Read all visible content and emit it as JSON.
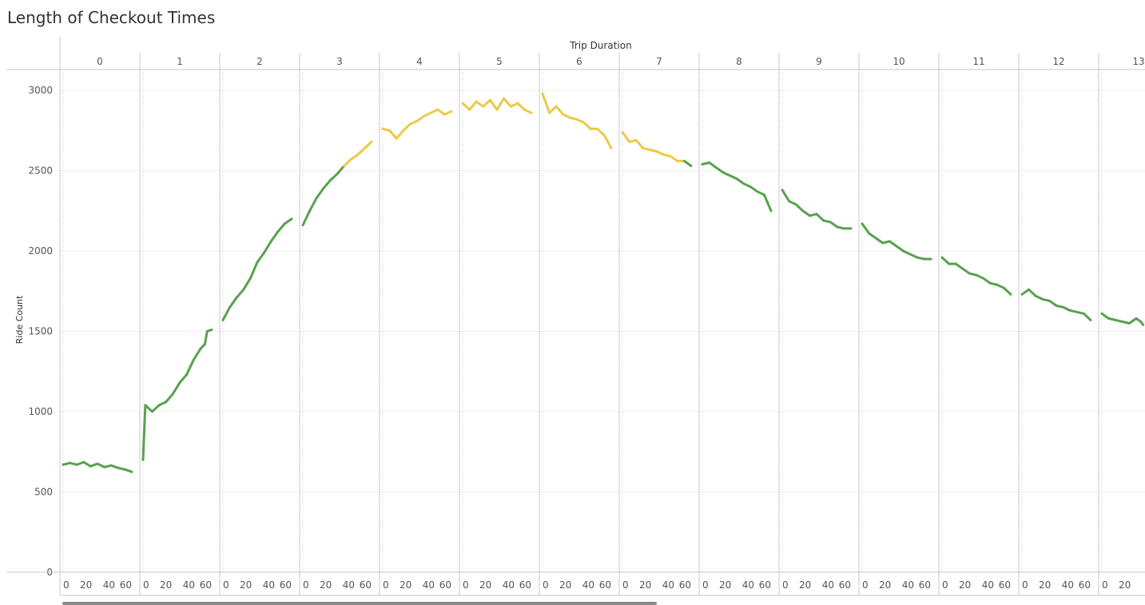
{
  "title": "Length of Checkout Times",
  "chart_data": {
    "type": "line",
    "title": "Length of Checkout Times",
    "panel_header": "Trip Duration",
    "ylabel": "Ride Count",
    "ylim": [
      0,
      3100
    ],
    "yticks": [
      0,
      500,
      1000,
      1500,
      2000,
      2500,
      3000
    ],
    "panels": [
      "0",
      "1",
      "2",
      "3",
      "4",
      "5",
      "6",
      "7",
      "8",
      "9",
      "10",
      "11",
      "12",
      "13"
    ],
    "x_ticks": [
      0,
      20,
      40,
      60
    ],
    "x_range_per_panel": [
      0,
      60
    ],
    "grid": true,
    "colors": {
      "low": "#59a14f",
      "high": "#edc948"
    },
    "color_threshold": 2550,
    "series": [
      {
        "panel": "0",
        "points": [
          [
            0,
            670
          ],
          [
            6,
            680
          ],
          [
            12,
            670
          ],
          [
            18,
            685
          ],
          [
            24,
            660
          ],
          [
            30,
            675
          ],
          [
            36,
            655
          ],
          [
            42,
            665
          ],
          [
            48,
            650
          ],
          [
            54,
            640
          ],
          [
            60,
            625
          ]
        ]
      },
      {
        "panel": "1",
        "points": [
          [
            0,
            700
          ],
          [
            2,
            1040
          ],
          [
            8,
            1000
          ],
          [
            14,
            1040
          ],
          [
            20,
            1060
          ],
          [
            26,
            1110
          ],
          [
            32,
            1180
          ],
          [
            38,
            1230
          ],
          [
            44,
            1320
          ],
          [
            50,
            1390
          ],
          [
            54,
            1420
          ],
          [
            56,
            1500
          ],
          [
            60,
            1510
          ]
        ]
      },
      {
        "panel": "2",
        "points": [
          [
            0,
            1570
          ],
          [
            6,
            1650
          ],
          [
            12,
            1710
          ],
          [
            18,
            1760
          ],
          [
            24,
            1830
          ],
          [
            30,
            1930
          ],
          [
            36,
            1990
          ],
          [
            42,
            2060
          ],
          [
            48,
            2120
          ],
          [
            54,
            2170
          ],
          [
            60,
            2200
          ]
        ]
      },
      {
        "panel": "3",
        "points": [
          [
            0,
            2160
          ],
          [
            6,
            2250
          ],
          [
            12,
            2330
          ],
          [
            18,
            2390
          ],
          [
            24,
            2440
          ],
          [
            30,
            2480
          ],
          [
            36,
            2530
          ],
          [
            42,
            2570
          ],
          [
            48,
            2600
          ],
          [
            54,
            2640
          ],
          [
            60,
            2680
          ]
        ]
      },
      {
        "panel": "4",
        "points": [
          [
            0,
            2760
          ],
          [
            6,
            2750
          ],
          [
            12,
            2700
          ],
          [
            18,
            2750
          ],
          [
            24,
            2790
          ],
          [
            30,
            2810
          ],
          [
            36,
            2840
          ],
          [
            42,
            2860
          ],
          [
            48,
            2880
          ],
          [
            54,
            2850
          ],
          [
            60,
            2870
          ]
        ]
      },
      {
        "panel": "5",
        "points": [
          [
            0,
            2920
          ],
          [
            6,
            2880
          ],
          [
            12,
            2930
          ],
          [
            18,
            2900
          ],
          [
            24,
            2940
          ],
          [
            30,
            2880
          ],
          [
            36,
            2950
          ],
          [
            42,
            2900
          ],
          [
            48,
            2920
          ],
          [
            54,
            2880
          ],
          [
            60,
            2860
          ]
        ]
      },
      {
        "panel": "6",
        "points": [
          [
            0,
            2980
          ],
          [
            6,
            2860
          ],
          [
            12,
            2900
          ],
          [
            18,
            2850
          ],
          [
            24,
            2830
          ],
          [
            30,
            2820
          ],
          [
            36,
            2800
          ],
          [
            42,
            2760
          ],
          [
            48,
            2760
          ],
          [
            54,
            2720
          ],
          [
            60,
            2640
          ]
        ]
      },
      {
        "panel": "7",
        "points": [
          [
            0,
            2740
          ],
          [
            6,
            2680
          ],
          [
            12,
            2690
          ],
          [
            18,
            2640
          ],
          [
            24,
            2630
          ],
          [
            30,
            2620
          ],
          [
            36,
            2600
          ],
          [
            42,
            2590
          ],
          [
            48,
            2560
          ],
          [
            54,
            2560
          ],
          [
            60,
            2530
          ]
        ]
      },
      {
        "panel": "8",
        "points": [
          [
            0,
            2540
          ],
          [
            6,
            2550
          ],
          [
            12,
            2520
          ],
          [
            18,
            2490
          ],
          [
            24,
            2470
          ],
          [
            30,
            2450
          ],
          [
            36,
            2420
          ],
          [
            42,
            2400
          ],
          [
            48,
            2370
          ],
          [
            54,
            2350
          ],
          [
            60,
            2250
          ]
        ]
      },
      {
        "panel": "9",
        "points": [
          [
            0,
            2380
          ],
          [
            6,
            2310
          ],
          [
            12,
            2290
          ],
          [
            18,
            2250
          ],
          [
            24,
            2220
          ],
          [
            30,
            2230
          ],
          [
            36,
            2190
          ],
          [
            42,
            2180
          ],
          [
            48,
            2150
          ],
          [
            54,
            2140
          ],
          [
            60,
            2140
          ]
        ]
      },
      {
        "panel": "10",
        "points": [
          [
            0,
            2170
          ],
          [
            6,
            2110
          ],
          [
            12,
            2080
          ],
          [
            18,
            2050
          ],
          [
            24,
            2060
          ],
          [
            30,
            2030
          ],
          [
            36,
            2000
          ],
          [
            42,
            1980
          ],
          [
            48,
            1960
          ],
          [
            54,
            1950
          ],
          [
            60,
            1950
          ]
        ]
      },
      {
        "panel": "11",
        "points": [
          [
            0,
            1960
          ],
          [
            6,
            1920
          ],
          [
            12,
            1920
          ],
          [
            18,
            1890
          ],
          [
            24,
            1860
          ],
          [
            30,
            1850
          ],
          [
            36,
            1830
          ],
          [
            42,
            1800
          ],
          [
            48,
            1790
          ],
          [
            54,
            1770
          ],
          [
            60,
            1730
          ]
        ]
      },
      {
        "panel": "12",
        "points": [
          [
            0,
            1730
          ],
          [
            6,
            1760
          ],
          [
            12,
            1720
          ],
          [
            18,
            1700
          ],
          [
            24,
            1690
          ],
          [
            30,
            1660
          ],
          [
            36,
            1650
          ],
          [
            42,
            1630
          ],
          [
            48,
            1620
          ],
          [
            54,
            1610
          ],
          [
            60,
            1570
          ]
        ]
      },
      {
        "panel": "13",
        "points": [
          [
            0,
            1610
          ],
          [
            6,
            1580
          ],
          [
            12,
            1570
          ],
          [
            18,
            1560
          ],
          [
            24,
            1550
          ],
          [
            30,
            1580
          ],
          [
            34,
            1560
          ],
          [
            36,
            1540
          ]
        ]
      }
    ]
  }
}
